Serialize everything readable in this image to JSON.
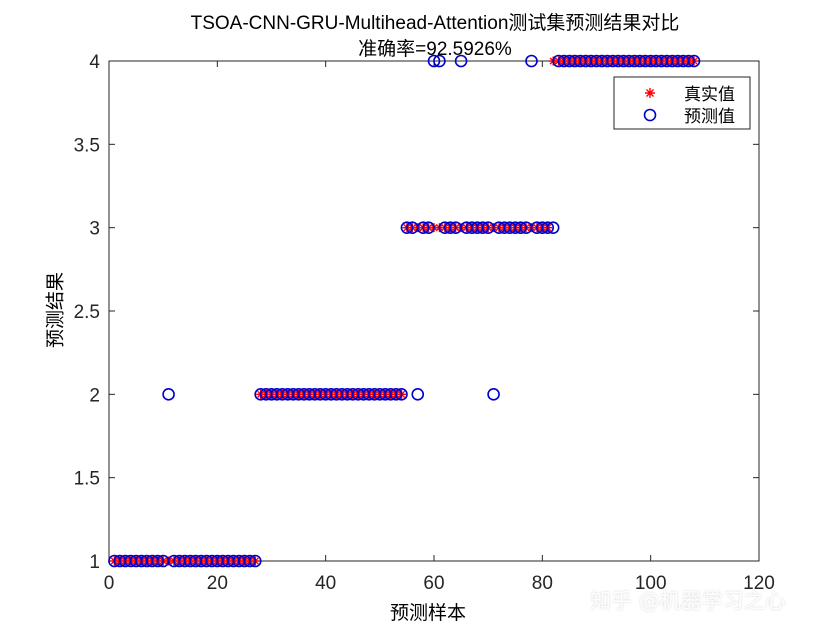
{
  "chart_data": {
    "type": "scatter",
    "title": "TSOA-CNN-GRU-Multihead-Attention测试集预测结果对比",
    "subtitle": "准确率=92.5926%",
    "xlabel": "预测样本",
    "ylabel": "预测结果",
    "xlim": [
      0,
      120
    ],
    "ylim": [
      1,
      4
    ],
    "xticks": [
      0,
      20,
      40,
      60,
      80,
      100,
      120
    ],
    "yticks": [
      1,
      1.5,
      2,
      2.5,
      3,
      3.5,
      4
    ],
    "xtick_labels": [
      "0",
      "20",
      "40",
      "60",
      "80",
      "100",
      "120"
    ],
    "ytick_labels": [
      "1",
      "1.5",
      "2",
      "2.5",
      "3",
      "3.5",
      "4"
    ],
    "grid": false,
    "legend_position": "top-right",
    "x": [
      1,
      2,
      3,
      4,
      5,
      6,
      7,
      8,
      9,
      10,
      11,
      12,
      13,
      14,
      15,
      16,
      17,
      18,
      19,
      20,
      21,
      22,
      23,
      24,
      25,
      26,
      27,
      28,
      29,
      30,
      31,
      32,
      33,
      34,
      35,
      36,
      37,
      38,
      39,
      40,
      41,
      42,
      43,
      44,
      45,
      46,
      47,
      48,
      49,
      50,
      51,
      52,
      53,
      54,
      55,
      56,
      57,
      58,
      59,
      60,
      61,
      62,
      63,
      64,
      65,
      66,
      67,
      68,
      69,
      70,
      71,
      72,
      73,
      74,
      75,
      76,
      77,
      78,
      79,
      80,
      81,
      82,
      83,
      84,
      85,
      86,
      87,
      88,
      89,
      90,
      91,
      92,
      93,
      94,
      95,
      96,
      97,
      98,
      99,
      100,
      101,
      102,
      103,
      104,
      105,
      106,
      107,
      108
    ],
    "series": [
      {
        "name": "真实值",
        "marker": "asterisk",
        "color": "#ff0000",
        "values": [
          1,
          1,
          1,
          1,
          1,
          1,
          1,
          1,
          1,
          1,
          1,
          1,
          1,
          1,
          1,
          1,
          1,
          1,
          1,
          1,
          1,
          1,
          1,
          1,
          1,
          1,
          1,
          2,
          2,
          2,
          2,
          2,
          2,
          2,
          2,
          2,
          2,
          2,
          2,
          2,
          2,
          2,
          2,
          2,
          2,
          2,
          2,
          2,
          2,
          2,
          2,
          2,
          2,
          2,
          3,
          3,
          3,
          3,
          3,
          3,
          3,
          3,
          3,
          3,
          3,
          3,
          3,
          3,
          3,
          3,
          3,
          3,
          3,
          3,
          3,
          3,
          3,
          3,
          3,
          3,
          3,
          4,
          4,
          4,
          4,
          4,
          4,
          4,
          4,
          4,
          4,
          4,
          4,
          4,
          4,
          4,
          4,
          4,
          4,
          4,
          4,
          4,
          4,
          4,
          4,
          4,
          4,
          4
        ]
      },
      {
        "name": "预测值",
        "marker": "circle",
        "color": "#0000cc",
        "values": [
          1,
          1,
          1,
          1,
          1,
          1,
          1,
          1,
          1,
          1,
          2,
          1,
          1,
          1,
          1,
          1,
          1,
          1,
          1,
          1,
          1,
          1,
          1,
          1,
          1,
          1,
          1,
          2,
          2,
          2,
          2,
          2,
          2,
          2,
          2,
          2,
          2,
          2,
          2,
          2,
          2,
          2,
          2,
          2,
          2,
          2,
          2,
          2,
          2,
          2,
          2,
          2,
          2,
          2,
          3,
          3,
          2,
          3,
          3,
          4,
          4,
          3,
          3,
          3,
          4,
          3,
          3,
          3,
          3,
          3,
          2,
          3,
          3,
          3,
          3,
          3,
          3,
          4,
          3,
          3,
          3,
          3,
          4,
          4,
          4,
          4,
          4,
          4,
          4,
          4,
          4,
          4,
          4,
          4,
          4,
          4,
          4,
          4,
          4,
          4,
          4,
          4,
          4,
          4,
          4,
          4,
          4,
          4
        ]
      }
    ]
  },
  "watermark": "知乎 @机器学习之心"
}
